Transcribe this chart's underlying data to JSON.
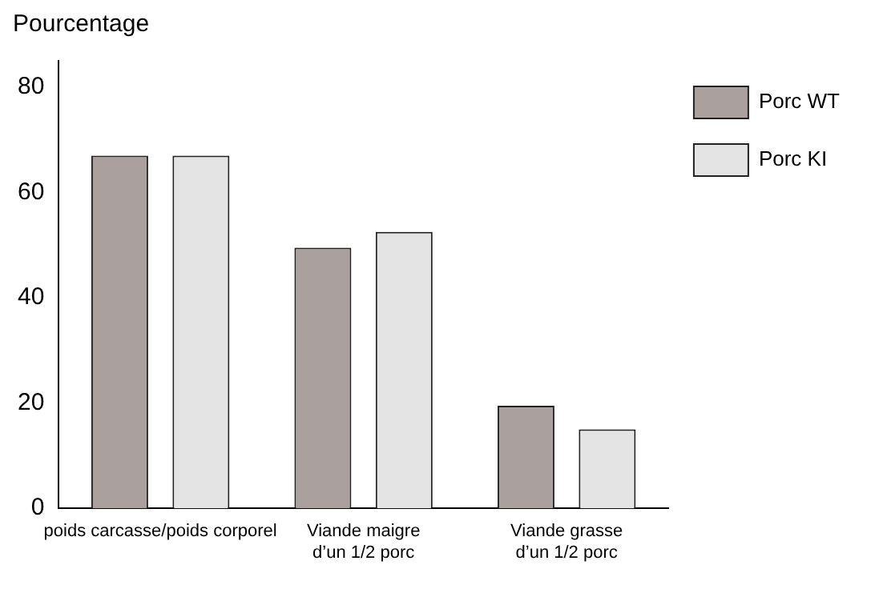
{
  "chart_data": {
    "type": "bar",
    "ylabel": "Pourcentage",
    "categories": [
      "poids carcasse/poids corporel",
      "Viande maigre\nd’un 1/2 porc",
      "Viande grasse\nd’un 1/2 porc"
    ],
    "series": [
      {
        "name": "Porc WT",
        "color": "#aaa19f",
        "values": [
          67,
          49.5,
          19.5
        ]
      },
      {
        "name": "Porc KI",
        "color": "#e4e4e4",
        "values": [
          67,
          52.5,
          15
        ]
      }
    ],
    "ylim": [
      0,
      85
    ],
    "yticks": [
      0,
      20,
      40,
      60,
      80
    ],
    "grid": false,
    "legend": "top right"
  }
}
